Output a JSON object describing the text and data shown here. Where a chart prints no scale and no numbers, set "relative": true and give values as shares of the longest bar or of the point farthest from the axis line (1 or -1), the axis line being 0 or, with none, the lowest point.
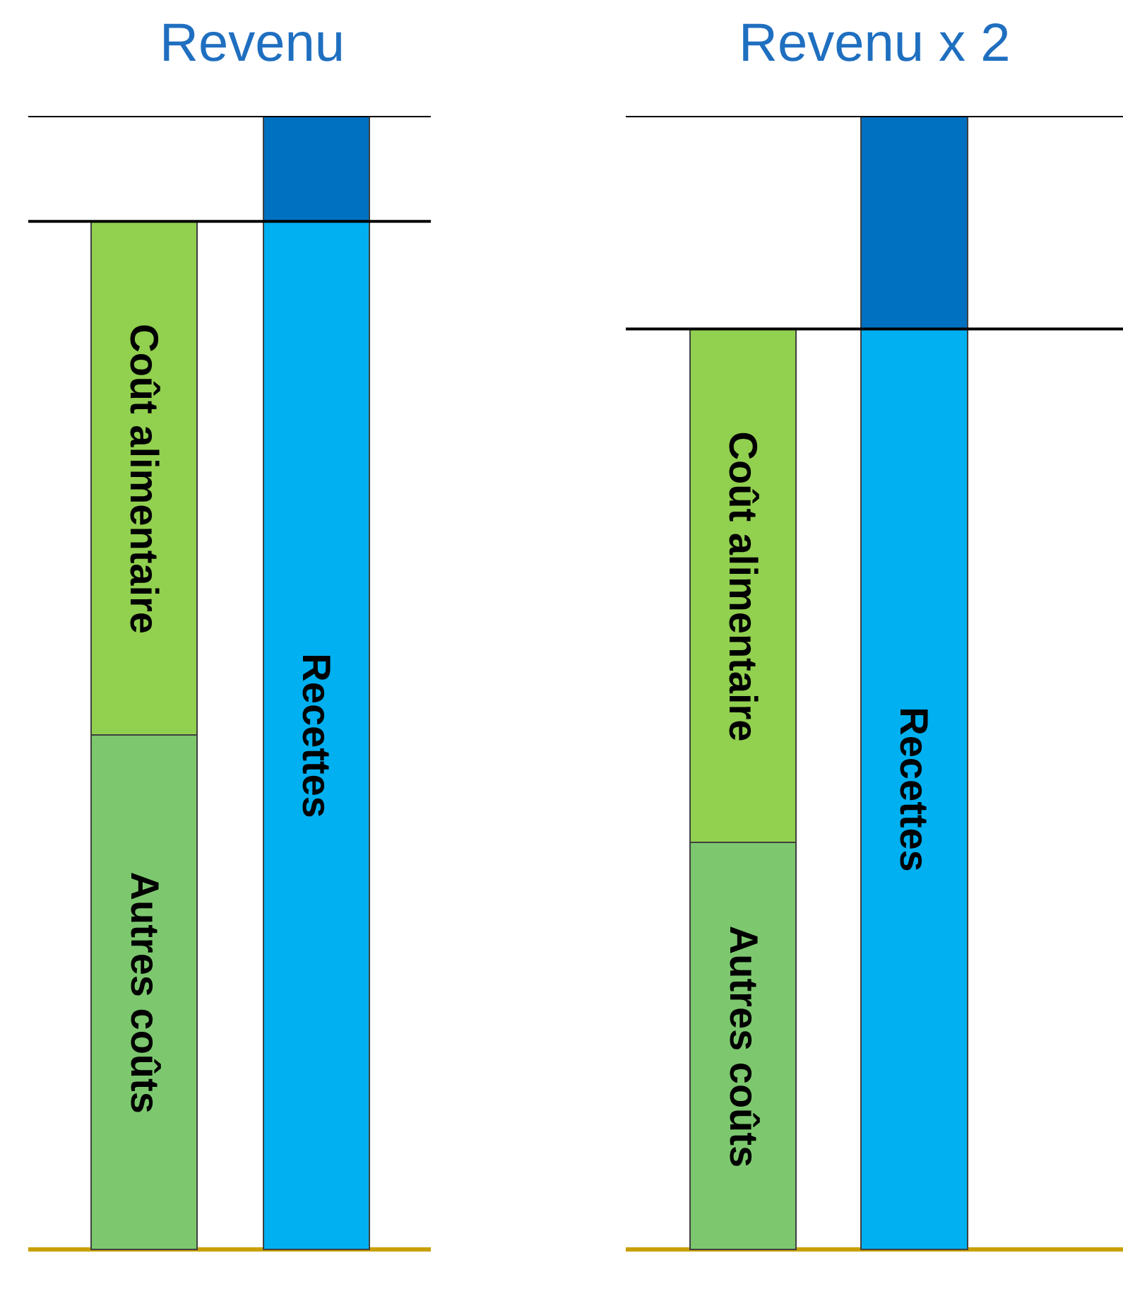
{
  "chart_data": [
    {
      "type": "bar",
      "title": "Revenu",
      "categories": [
        null,
        null
      ],
      "stacked": true,
      "relative": true,
      "tick_labels": false,
      "series": [
        {
          "colors": [
            "#7dc86f",
            "#00b0f0"
          ],
          "values": [
            0.454,
            0.907
          ]
        },
        {
          "colors": [
            "#92d050",
            "#0070c0"
          ],
          "values": [
            0.453,
            0.093
          ]
        }
      ],
      "annotations": [
        "Autres coûts",
        "Recettes",
        "Coût alimentaire"
      ],
      "ref_lines": [
        {
          "axis": "y",
          "value": 1.0,
          "color": "#000000"
        },
        {
          "axis": "y",
          "value": 0.907,
          "color": "#000000"
        }
      ]
    },
    {
      "type": "bar",
      "title": "Revenu x 2",
      "categories": [
        null,
        null
      ],
      "stacked": true,
      "relative": true,
      "tick_labels": false,
      "series": [
        {
          "colors": [
            "#7dc86f",
            "#00b0f0"
          ],
          "values": [
            0.359,
            0.812
          ]
        },
        {
          "colors": [
            "#92d050",
            "#0070c0"
          ],
          "values": [
            0.453,
            0.188
          ]
        }
      ],
      "annotations": [
        "Autres coûts",
        "Recettes",
        "Coût alimentaire"
      ],
      "ref_lines": [
        {
          "axis": "y",
          "value": 1.0,
          "color": "#000000"
        },
        {
          "axis": "y",
          "value": 0.812,
          "color": "#000000"
        }
      ]
    }
  ]
}
